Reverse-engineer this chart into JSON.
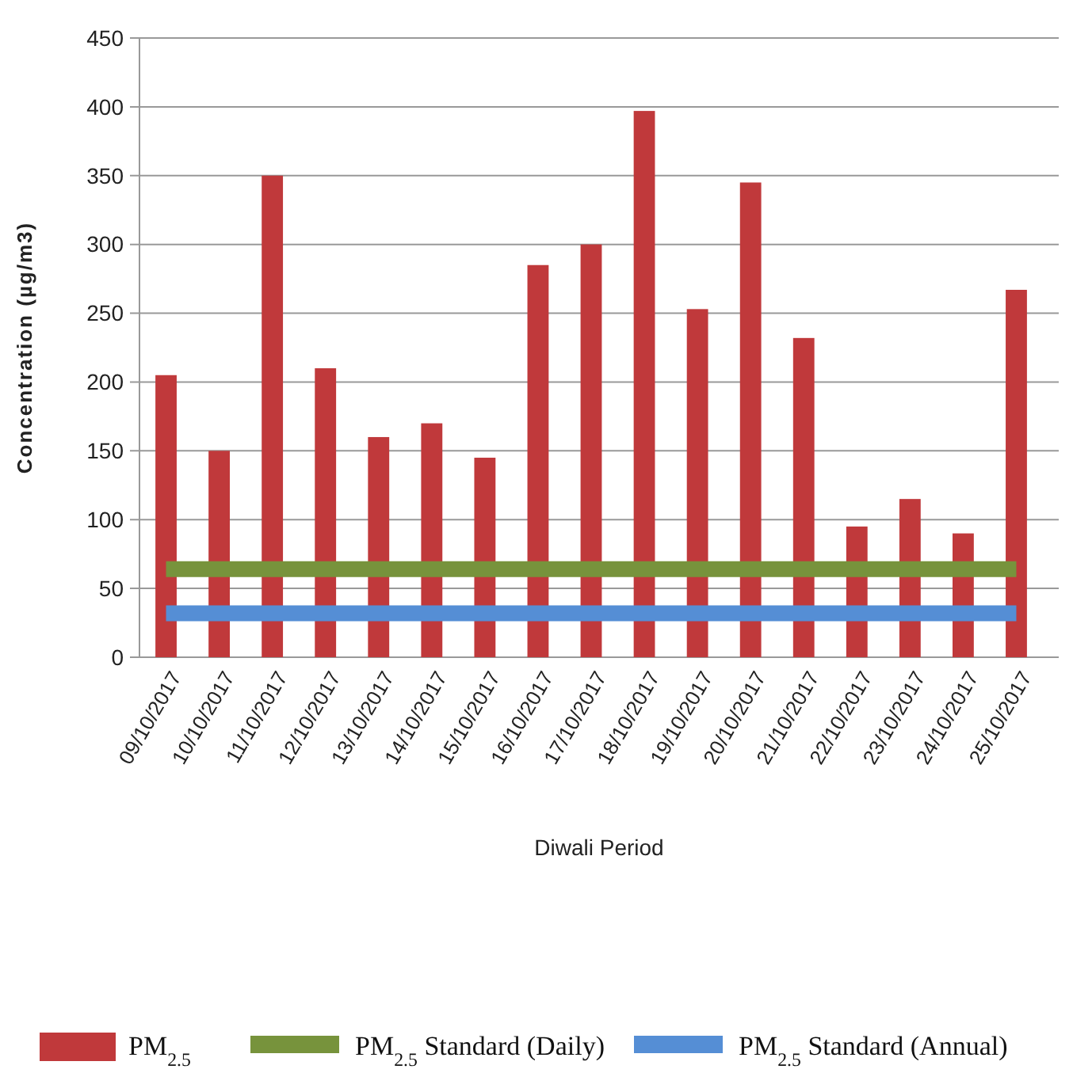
{
  "chart_data": {
    "type": "bar",
    "xlabel": "Diwali Period",
    "ylabel": "Concentration  (µg/m3)",
    "categories": [
      "09/10/2017",
      "10/10/2017",
      "11/10/2017",
      "12/10/2017",
      "13/10/2017",
      "14/10/2017",
      "15/10/2017",
      "16/10/2017",
      "17/10/2017",
      "18/10/2017",
      "19/10/2017",
      "20/10/2017",
      "21/10/2017",
      "22/10/2017",
      "23/10/2017",
      "24/10/2017",
      "25/10/2017"
    ],
    "series": [
      {
        "name": "PM$_{2.5}$",
        "color": "#c0393b",
        "values": [
          205,
          150,
          350,
          210,
          160,
          170,
          145,
          285,
          300,
          397,
          253,
          345,
          232,
          95,
          115,
          90,
          267
        ]
      },
      {
        "name": "PM$_{2.5}$ Standard (Daily)",
        "type": "line",
        "color": "#77933c",
        "values": [
          64,
          64,
          64,
          64,
          64,
          64,
          64,
          64,
          64,
          64,
          64,
          64,
          64,
          64,
          64,
          64,
          64
        ]
      },
      {
        "name": "PM$_{2.5}$ Standard (Annual)",
        "type": "line",
        "color": "#558ed5",
        "values": [
          32,
          32,
          32,
          32,
          32,
          32,
          32,
          32,
          32,
          32,
          32,
          32,
          32,
          32,
          32,
          32,
          32
        ]
      }
    ],
    "ylim": [
      0,
      450
    ],
    "yticks": [
      0,
      50,
      100,
      150,
      200,
      250,
      300,
      350,
      400,
      450
    ],
    "grid": "y",
    "legend": "bottom"
  }
}
